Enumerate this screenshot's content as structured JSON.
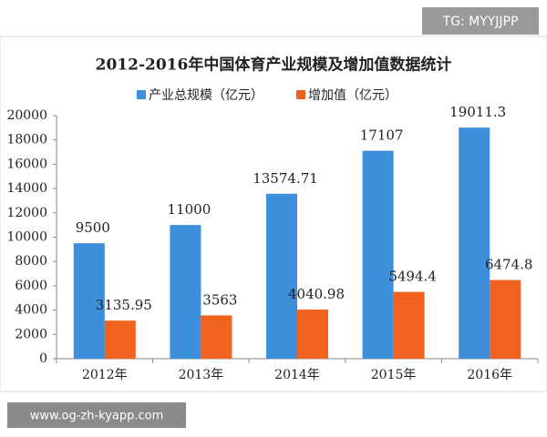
{
  "chart_data": {
    "type": "bar",
    "title": "2012-2016年中国体育产业规模及增加值数据统计",
    "categories": [
      "2012年",
      "2013年",
      "2014年",
      "2015年",
      "2016年"
    ],
    "series": [
      {
        "name": "产业总规模（亿元）",
        "color": "#3d8fdc",
        "values": [
          9500,
          11000,
          13574.71,
          17107,
          19011.3
        ]
      },
      {
        "name": "增加值（亿元）",
        "color": "#f0631f",
        "values": [
          3135.95,
          3563,
          4040.98,
          5494.4,
          6474.8
        ]
      }
    ],
    "ylim": [
      0,
      20000
    ],
    "yticks": [
      0,
      2000,
      4000,
      6000,
      8000,
      10000,
      12000,
      14000,
      16000,
      18000,
      20000
    ],
    "grid": false,
    "legend": "top",
    "annotations": [
      "TG: MYYJJPP",
      "www.og-zh-kyapp.com"
    ]
  }
}
